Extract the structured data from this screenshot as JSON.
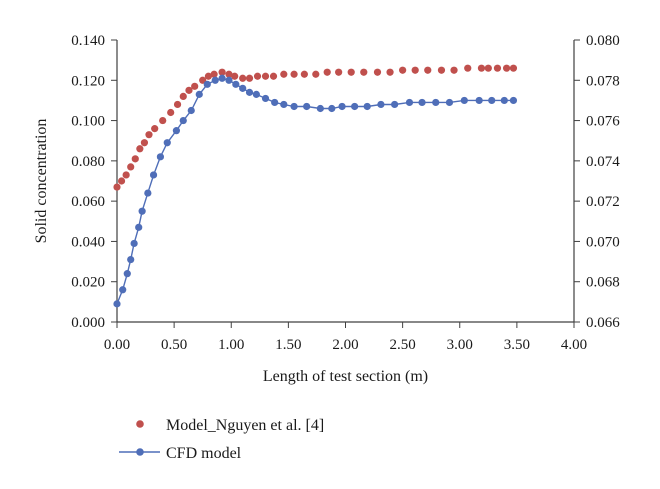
{
  "chart_data": {
    "type": "scatter",
    "title": "",
    "xlabel": "Length of test section (m)",
    "ylabel": "Solid concentration",
    "y2label": "",
    "xlim": [
      0,
      4
    ],
    "ylim": [
      0,
      0.14
    ],
    "y2lim": [
      0.066,
      0.08
    ],
    "x_ticks": [
      "0.00",
      "0.50",
      "1.00",
      "1.50",
      "2.00",
      "2.50",
      "3.00",
      "3.50",
      "4.00"
    ],
    "y_ticks": [
      "0.000",
      "0.020",
      "0.040",
      "0.060",
      "0.080",
      "0.100",
      "0.120",
      "0.140"
    ],
    "y2_ticks": [
      "0.066",
      "0.068",
      "0.070",
      "0.072",
      "0.074",
      "0.076",
      "0.078",
      "0.080"
    ],
    "grid": false,
    "legend_position": "bottom-left",
    "series": [
      {
        "name": "Model_Nguyen et al. [4]",
        "axis": "left",
        "style": "markers",
        "color": "#c0504d",
        "points": [
          [
            0.0,
            0.067
          ],
          [
            0.04,
            0.07
          ],
          [
            0.08,
            0.073
          ],
          [
            0.12,
            0.077
          ],
          [
            0.16,
            0.081
          ],
          [
            0.2,
            0.086
          ],
          [
            0.24,
            0.089
          ],
          [
            0.28,
            0.093
          ],
          [
            0.33,
            0.096
          ],
          [
            0.4,
            0.1
          ],
          [
            0.47,
            0.104
          ],
          [
            0.53,
            0.108
          ],
          [
            0.58,
            0.112
          ],
          [
            0.63,
            0.115
          ],
          [
            0.68,
            0.117
          ],
          [
            0.75,
            0.12
          ],
          [
            0.8,
            0.122
          ],
          [
            0.85,
            0.123
          ],
          [
            0.92,
            0.124
          ],
          [
            0.98,
            0.123
          ],
          [
            1.03,
            0.122
          ],
          [
            1.1,
            0.121
          ],
          [
            1.16,
            0.121
          ],
          [
            1.23,
            0.122
          ],
          [
            1.3,
            0.122
          ],
          [
            1.37,
            0.122
          ],
          [
            1.46,
            0.123
          ],
          [
            1.55,
            0.123
          ],
          [
            1.64,
            0.123
          ],
          [
            1.74,
            0.123
          ],
          [
            1.84,
            0.124
          ],
          [
            1.94,
            0.124
          ],
          [
            2.05,
            0.124
          ],
          [
            2.16,
            0.124
          ],
          [
            2.28,
            0.124
          ],
          [
            2.39,
            0.124
          ],
          [
            2.5,
            0.125
          ],
          [
            2.61,
            0.125
          ],
          [
            2.72,
            0.125
          ],
          [
            2.84,
            0.125
          ],
          [
            2.95,
            0.125
          ],
          [
            3.07,
            0.126
          ],
          [
            3.19,
            0.126
          ],
          [
            3.25,
            0.126
          ],
          [
            3.33,
            0.126
          ],
          [
            3.41,
            0.126
          ],
          [
            3.47,
            0.126
          ]
        ]
      },
      {
        "name": "CFD model",
        "axis": "right",
        "style": "line+markers",
        "color": "#4f6eb8",
        "points": [
          [
            0.0,
            0.0669
          ],
          [
            0.05,
            0.0676
          ],
          [
            0.09,
            0.0684
          ],
          [
            0.12,
            0.0691
          ],
          [
            0.15,
            0.0699
          ],
          [
            0.19,
            0.0707
          ],
          [
            0.22,
            0.0715
          ],
          [
            0.27,
            0.0724
          ],
          [
            0.32,
            0.0733
          ],
          [
            0.38,
            0.0742
          ],
          [
            0.44,
            0.0749
          ],
          [
            0.52,
            0.0755
          ],
          [
            0.58,
            0.076
          ],
          [
            0.65,
            0.0765
          ],
          [
            0.72,
            0.0773
          ],
          [
            0.79,
            0.0778
          ],
          [
            0.86,
            0.078
          ],
          [
            0.92,
            0.0781
          ],
          [
            0.98,
            0.078
          ],
          [
            1.04,
            0.0778
          ],
          [
            1.1,
            0.0776
          ],
          [
            1.16,
            0.0774
          ],
          [
            1.22,
            0.0773
          ],
          [
            1.3,
            0.0771
          ],
          [
            1.38,
            0.0769
          ],
          [
            1.46,
            0.0768
          ],
          [
            1.55,
            0.0767
          ],
          [
            1.66,
            0.0767
          ],
          [
            1.78,
            0.0766
          ],
          [
            1.88,
            0.0766
          ],
          [
            1.97,
            0.0767
          ],
          [
            2.08,
            0.0767
          ],
          [
            2.19,
            0.0767
          ],
          [
            2.31,
            0.0768
          ],
          [
            2.43,
            0.0768
          ],
          [
            2.56,
            0.0769
          ],
          [
            2.67,
            0.0769
          ],
          [
            2.79,
            0.0769
          ],
          [
            2.91,
            0.0769
          ],
          [
            3.04,
            0.077
          ],
          [
            3.17,
            0.077
          ],
          [
            3.28,
            0.077
          ],
          [
            3.39,
            0.077
          ],
          [
            3.47,
            0.077
          ]
        ]
      }
    ]
  }
}
